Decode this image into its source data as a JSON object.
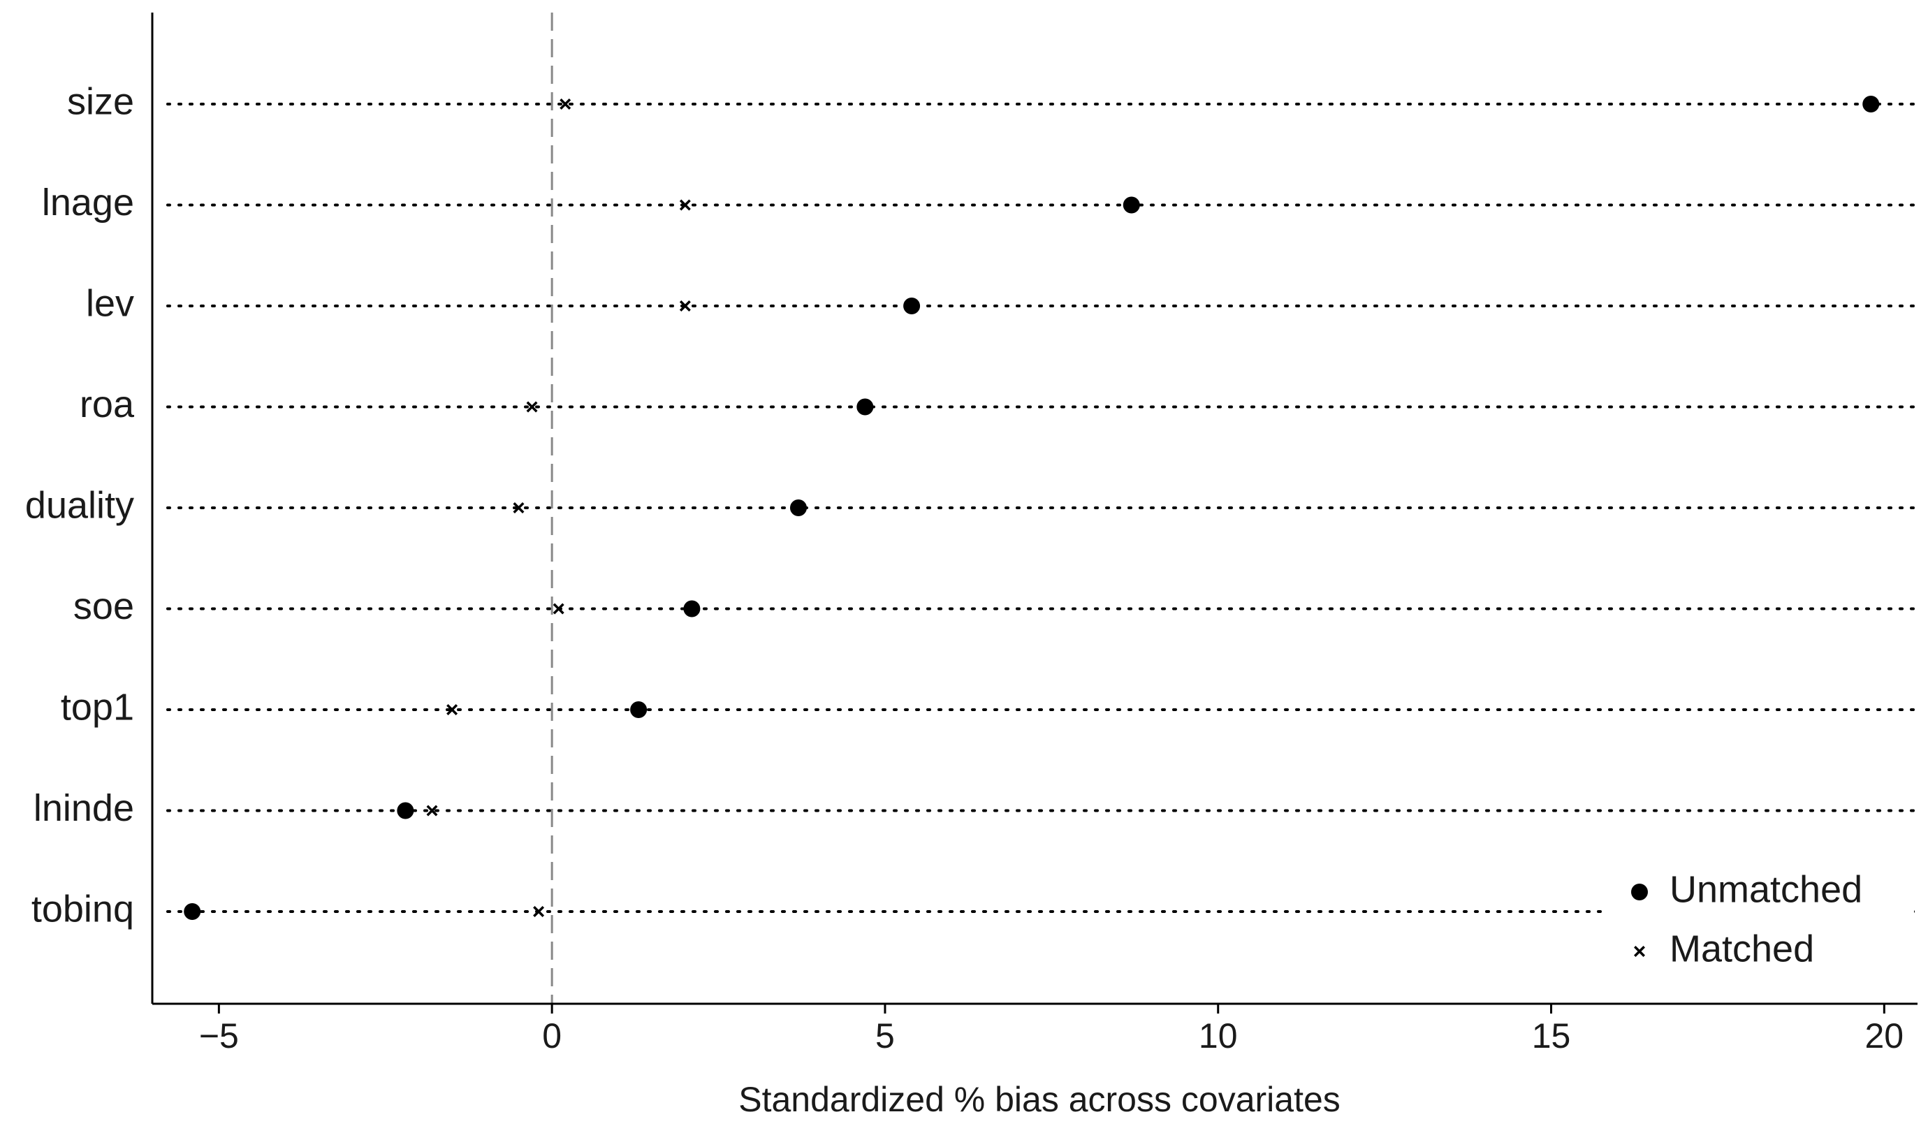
{
  "chart_data": {
    "type": "dot",
    "xlabel": "Standardized % bias across covariates",
    "categories": [
      "size",
      "lnage",
      "lev",
      "roa",
      "duality",
      "soe",
      "top1",
      "lninde",
      "tobinq"
    ],
    "series": [
      {
        "name": "Unmatched",
        "marker": "circle",
        "color": "#000000",
        "values": [
          19.8,
          8.7,
          5.4,
          4.7,
          3.7,
          2.1,
          1.3,
          -2.2,
          -5.4
        ]
      },
      {
        "name": "Matched",
        "marker": "cross",
        "color": "#000000",
        "values": [
          0.2,
          2.0,
          2.0,
          -0.3,
          -0.5,
          0.1,
          -1.5,
          -1.8,
          -0.2
        ]
      }
    ],
    "xlim": [
      -6,
      20.5
    ],
    "xticks": [
      {
        "value": -5,
        "label": "−5"
      },
      0,
      5,
      10,
      15,
      20
    ],
    "reference_line": 0,
    "legend": "bottom-right"
  }
}
